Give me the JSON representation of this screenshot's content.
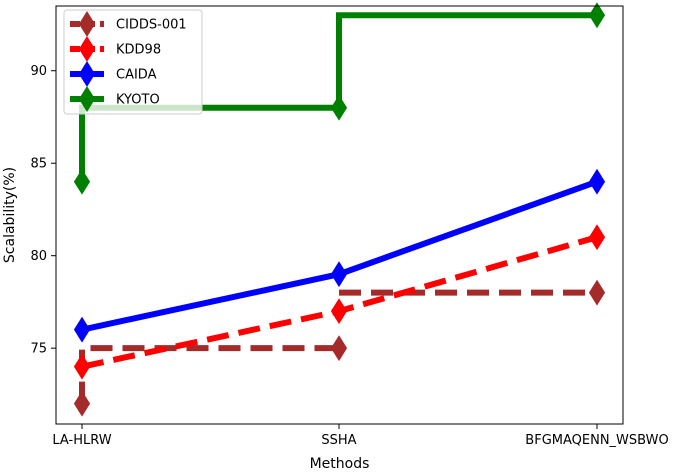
{
  "chart_data": {
    "type": "line",
    "title": "",
    "xlabel": "Methods",
    "ylabel": "Scalability(%)",
    "categories": [
      "LA-HLRW",
      "SSHA",
      "BFGMAQENN_WSBWO"
    ],
    "ylim": [
      70.9,
      93.5
    ],
    "yticks": [
      75,
      80,
      85,
      90
    ],
    "grid": false,
    "legend_position": "top-left",
    "series": [
      {
        "name": "CIDDS-001",
        "values": [
          72,
          75,
          78
        ],
        "color": "#a52a2a",
        "style": "dashed-steps-post"
      },
      {
        "name": "KDD98",
        "values": [
          74,
          77,
          81
        ],
        "color": "#ff0000",
        "style": "dashed"
      },
      {
        "name": "CAIDA",
        "values": [
          76,
          79,
          84
        ],
        "color": "#0000ff",
        "style": "solid"
      },
      {
        "name": "KYOTO",
        "values": [
          84,
          88,
          93
        ],
        "color": "#008000",
        "style": "solid-steps-pre"
      }
    ]
  }
}
